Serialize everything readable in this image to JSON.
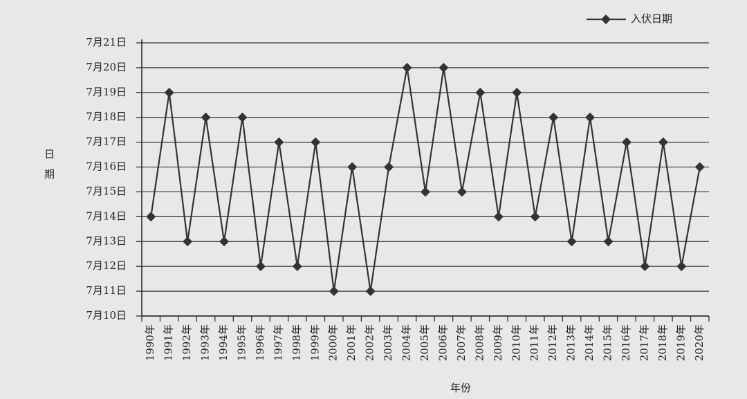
{
  "chart_data": {
    "type": "line",
    "x_label": "年份",
    "y_label": "日期",
    "categories": [
      "1990年",
      "1991年",
      "1992年",
      "1993年",
      "1994年",
      "1995年",
      "1996年",
      "1997年",
      "1998年",
      "1999年",
      "2000年",
      "2001年",
      "2002年",
      "2003年",
      "2004年",
      "2005年",
      "2006年",
      "2007年",
      "2008年",
      "2009年",
      "2010年",
      "2011年",
      "2012年",
      "2013年",
      "2014年",
      "2015年",
      "2016年",
      "2017年",
      "2018年",
      "2019年",
      "2020年"
    ],
    "series": [
      {
        "name": "入伏日期",
        "color": "#333333",
        "values": [
          14,
          19,
          13,
          18,
          13,
          18,
          12,
          17,
          12,
          17,
          11,
          16,
          11,
          16,
          20,
          15,
          20,
          15,
          19,
          14,
          19,
          14,
          18,
          13,
          18,
          13,
          17,
          12,
          17,
          12,
          16
        ]
      }
    ],
    "ylim": [
      10,
      21
    ],
    "yticks": [
      {
        "value": 10,
        "label": "7月10日"
      },
      {
        "value": 11,
        "label": "7月11日"
      },
      {
        "value": 12,
        "label": "7月12日"
      },
      {
        "value": 13,
        "label": "7月13日"
      },
      {
        "value": 14,
        "label": "7月14日"
      },
      {
        "value": 15,
        "label": "7月15日"
      },
      {
        "value": 16,
        "label": "7月16日"
      },
      {
        "value": 17,
        "label": "7月17日"
      },
      {
        "value": 18,
        "label": "7月18日"
      },
      {
        "value": 19,
        "label": "7月19日"
      },
      {
        "value": 20,
        "label": "7月20日"
      },
      {
        "value": 21,
        "label": "7月21日"
      }
    ],
    "grid": true,
    "legend": "top-right"
  }
}
